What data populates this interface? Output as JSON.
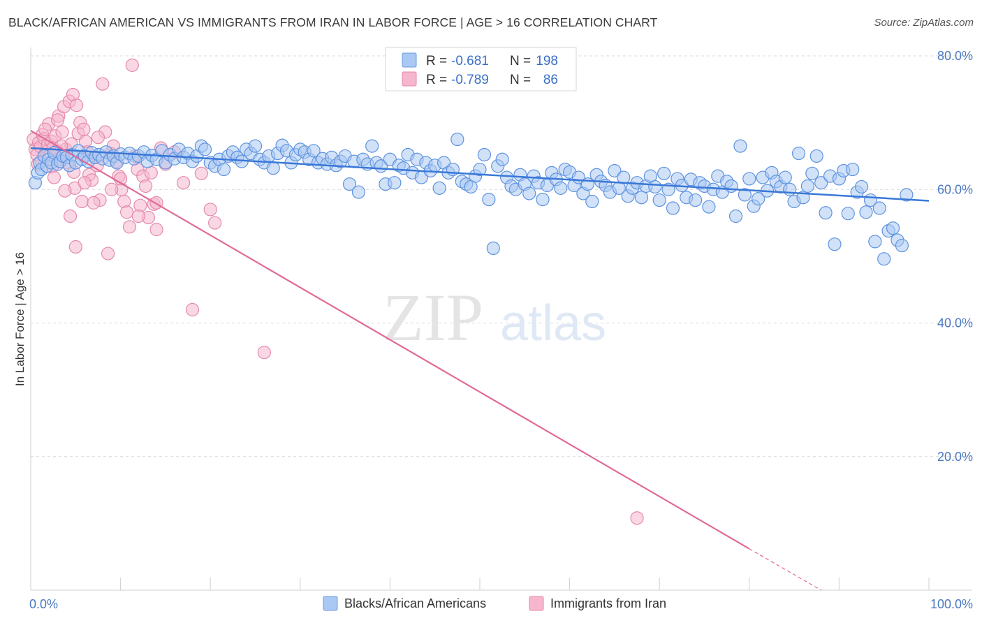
{
  "title": "BLACK/AFRICAN AMERICAN VS IMMIGRANTS FROM IRAN IN LABOR FORCE | AGE > 16 CORRELATION CHART",
  "source": "Source: ZipAtlas.com",
  "colors": {
    "blue": "#3a78d8",
    "blue_fill": "#a9c8f3",
    "pink": "#e06a98",
    "pink_fill": "#f6b6cd",
    "grid": "#d9d9d9",
    "tick_label": "#4a78c0"
  },
  "chart_data": {
    "type": "scatter",
    "xlabel": "",
    "ylabel": "In Labor Force | Age > 16",
    "xlim": [
      0,
      100
    ],
    "ylim": [
      0,
      80
    ],
    "x_tick_labels": [
      "0.0%",
      "100.0%"
    ],
    "y_ticks": [
      20,
      40,
      60,
      80
    ],
    "y_tick_labels": [
      "20.0%",
      "40.0%",
      "60.0%",
      "80.0%"
    ],
    "grid": true,
    "legend_position": "top-center",
    "watermark": {
      "zip": "ZIP",
      "atlas": "atlas"
    },
    "stats": [
      {
        "r_label": "R =",
        "r_value": "-0.681",
        "n_label": "N =",
        "n_value": "198"
      },
      {
        "r_label": "R =",
        "r_value": "-0.789",
        "n_label": "N =",
        "n_value": "86"
      }
    ],
    "series": [
      {
        "name": "Blacks/African Americans",
        "trend": {
          "x": [
            0,
            100
          ],
          "y": [
            66.2,
            58.3
          ]
        },
        "points": [
          [
            0.5,
            61
          ],
          [
            0.8,
            62.5
          ],
          [
            1,
            64
          ],
          [
            1.2,
            63
          ],
          [
            1.5,
            65
          ],
          [
            1.8,
            63.5
          ],
          [
            2,
            64.5
          ],
          [
            2.3,
            64
          ],
          [
            2.6,
            65.5
          ],
          [
            3,
            63.8
          ],
          [
            3.3,
            64.2
          ],
          [
            3.6,
            65
          ],
          [
            4,
            64.8
          ],
          [
            4.3,
            63.6
          ],
          [
            4.6,
            65.2
          ],
          [
            5,
            64
          ],
          [
            5.3,
            65.8
          ],
          [
            5.7,
            64.5
          ],
          [
            6,
            65
          ],
          [
            6.4,
            64.2
          ],
          [
            6.8,
            65.5
          ],
          [
            7.2,
            64.8
          ],
          [
            7.6,
            65.2
          ],
          [
            8,
            64.6
          ],
          [
            8.4,
            65.6
          ],
          [
            8.8,
            64.4
          ],
          [
            9.2,
            65
          ],
          [
            9.6,
            64
          ],
          [
            10,
            65.3
          ],
          [
            10.5,
            64.8
          ],
          [
            11,
            65.4
          ],
          [
            11.5,
            64.6
          ],
          [
            12,
            65
          ],
          [
            12.6,
            65.6
          ],
          [
            13,
            64.2
          ],
          [
            13.5,
            65.1
          ],
          [
            14,
            64.5
          ],
          [
            14.6,
            65.8
          ],
          [
            15,
            64
          ],
          [
            15.5,
            65.2
          ],
          [
            16,
            64.6
          ],
          [
            16.5,
            66
          ],
          [
            17,
            64.8
          ],
          [
            17.5,
            65.4
          ],
          [
            18,
            64.2
          ],
          [
            18.5,
            65
          ],
          [
            19,
            66.5
          ],
          [
            19.4,
            66
          ],
          [
            20,
            64
          ],
          [
            20.5,
            63.5
          ],
          [
            21,
            64.5
          ],
          [
            21.5,
            63
          ],
          [
            22,
            65
          ],
          [
            22.5,
            65.6
          ],
          [
            23,
            64.8
          ],
          [
            23.5,
            64.2
          ],
          [
            24,
            66
          ],
          [
            24.5,
            65.4
          ],
          [
            25,
            66.5
          ],
          [
            25.5,
            64.5
          ],
          [
            26,
            64
          ],
          [
            26.5,
            65
          ],
          [
            27,
            63.2
          ],
          [
            27.5,
            65.4
          ],
          [
            28,
            66.6
          ],
          [
            28.5,
            65.8
          ],
          [
            29,
            64
          ],
          [
            29.5,
            65.2
          ],
          [
            30,
            66
          ],
          [
            30.5,
            65.6
          ],
          [
            31,
            64.5
          ],
          [
            31.5,
            65.8
          ],
          [
            32,
            64
          ],
          [
            32.5,
            64.6
          ],
          [
            33,
            63.8
          ],
          [
            33.5,
            64.8
          ],
          [
            34,
            63.6
          ],
          [
            34.5,
            64.2
          ],
          [
            35,
            65
          ],
          [
            35.5,
            60.8
          ],
          [
            36,
            64.2
          ],
          [
            36.5,
            59.6
          ],
          [
            37,
            64.5
          ],
          [
            37.5,
            63.8
          ],
          [
            38,
            66.5
          ],
          [
            38.5,
            64
          ],
          [
            39,
            63.5
          ],
          [
            39.5,
            60.8
          ],
          [
            40,
            64.5
          ],
          [
            40.5,
            61
          ],
          [
            41,
            63.6
          ],
          [
            41.5,
            63.2
          ],
          [
            42,
            65.2
          ],
          [
            42.5,
            62.5
          ],
          [
            43,
            64.5
          ],
          [
            43.5,
            61.8
          ],
          [
            44,
            64
          ],
          [
            44.5,
            62.8
          ],
          [
            45,
            63.6
          ],
          [
            45.5,
            60.2
          ],
          [
            46,
            64
          ],
          [
            46.5,
            62.5
          ],
          [
            47,
            63
          ],
          [
            47.5,
            67.5
          ],
          [
            48,
            61.2
          ],
          [
            48.5,
            60.8
          ],
          [
            49,
            60.4
          ],
          [
            49.5,
            62
          ],
          [
            50,
            63
          ],
          [
            50.5,
            65.2
          ],
          [
            51,
            58.5
          ],
          [
            51.5,
            51.2
          ],
          [
            52,
            63.5
          ],
          [
            52.5,
            64.5
          ],
          [
            53,
            61.8
          ],
          [
            53.5,
            60.5
          ],
          [
            54,
            60
          ],
          [
            54.5,
            62.2
          ],
          [
            55,
            60.8
          ],
          [
            55.5,
            59.4
          ],
          [
            56,
            62
          ],
          [
            56.5,
            61
          ],
          [
            57,
            58.5
          ],
          [
            57.5,
            60.6
          ],
          [
            58,
            62.5
          ],
          [
            58.5,
            61.5
          ],
          [
            59,
            60.2
          ],
          [
            59.5,
            63
          ],
          [
            60,
            62.6
          ],
          [
            60.5,
            60.6
          ],
          [
            61,
            61.8
          ],
          [
            61.5,
            59.4
          ],
          [
            62,
            60.8
          ],
          [
            62.5,
            58.2
          ],
          [
            63,
            62.2
          ],
          [
            63.5,
            61.2
          ],
          [
            64,
            60.6
          ],
          [
            64.5,
            59.6
          ],
          [
            65,
            62.8
          ],
          [
            65.5,
            60.2
          ],
          [
            66,
            61.8
          ],
          [
            66.5,
            59
          ],
          [
            67,
            60.2
          ],
          [
            67.5,
            61
          ],
          [
            68,
            58.8
          ],
          [
            68.5,
            60.5
          ],
          [
            69,
            62
          ],
          [
            69.5,
            60.4
          ],
          [
            70,
            58.4
          ],
          [
            70.5,
            62.4
          ],
          [
            71,
            60
          ],
          [
            71.5,
            57.2
          ],
          [
            72,
            61.6
          ],
          [
            72.5,
            60.6
          ],
          [
            73,
            58.8
          ],
          [
            73.5,
            61.5
          ],
          [
            74,
            58.4
          ],
          [
            74.5,
            61
          ],
          [
            75,
            60.5
          ],
          [
            75.5,
            57.4
          ],
          [
            76,
            60
          ],
          [
            76.5,
            62
          ],
          [
            77,
            59.6
          ],
          [
            77.5,
            61.2
          ],
          [
            78,
            60.5
          ],
          [
            78.5,
            56
          ],
          [
            79,
            66.5
          ],
          [
            79.5,
            59.2
          ],
          [
            80,
            61.6
          ],
          [
            80.5,
            57.5
          ],
          [
            81,
            58.6
          ],
          [
            81.5,
            61.8
          ],
          [
            82,
            59.8
          ],
          [
            82.5,
            62.5
          ],
          [
            83,
            61.2
          ],
          [
            83.5,
            60.4
          ],
          [
            84,
            61.8
          ],
          [
            84.5,
            60
          ],
          [
            85,
            58.2
          ],
          [
            85.5,
            65.4
          ],
          [
            86,
            58.8
          ],
          [
            86.5,
            60.5
          ],
          [
            87,
            62.4
          ],
          [
            87.5,
            65
          ],
          [
            88,
            61
          ],
          [
            88.5,
            56.5
          ],
          [
            89,
            62
          ],
          [
            89.5,
            51.8
          ],
          [
            90,
            61.6
          ],
          [
            90.5,
            62.8
          ],
          [
            91,
            56.4
          ],
          [
            91.5,
            63
          ],
          [
            92,
            59.6
          ],
          [
            92.5,
            60.4
          ],
          [
            93,
            56.6
          ],
          [
            93.5,
            58.4
          ],
          [
            94,
            52.2
          ],
          [
            94.5,
            57.2
          ],
          [
            95,
            49.6
          ],
          [
            95.5,
            53.8
          ],
          [
            96,
            54.2
          ],
          [
            96.5,
            52.4
          ],
          [
            97,
            51.6
          ],
          [
            97.5,
            59.2
          ]
        ]
      },
      {
        "name": "Immigrants from Iran",
        "trend": {
          "x": [
            0,
            80
          ],
          "y": [
            68.8,
            6.2
          ],
          "dash_to": [
            88,
            0
          ]
        },
        "points": [
          [
            0.3,
            67.5
          ],
          [
            0.5,
            66
          ],
          [
            0.7,
            65.2
          ],
          [
            0.9,
            67
          ],
          [
            1.1,
            66.4
          ],
          [
            1.3,
            68.2
          ],
          [
            1.5,
            67.6
          ],
          [
            1.7,
            65.6
          ],
          [
            1.9,
            66.8
          ],
          [
            2.1,
            65
          ],
          [
            2.3,
            67.2
          ],
          [
            2.5,
            66.2
          ],
          [
            2.7,
            68
          ],
          [
            2.9,
            65.8
          ],
          [
            3.1,
            71
          ],
          [
            3.3,
            64.5
          ],
          [
            3.5,
            68.6
          ],
          [
            3.7,
            72.4
          ],
          [
            3.9,
            66
          ],
          [
            4.1,
            64
          ],
          [
            4.3,
            73.2
          ],
          [
            4.5,
            66.8
          ],
          [
            4.7,
            74.2
          ],
          [
            4.9,
            60.2
          ],
          [
            5.1,
            72.6
          ],
          [
            5.3,
            68.4
          ],
          [
            5.5,
            70
          ],
          [
            5.7,
            58.2
          ],
          [
            5.9,
            69
          ],
          [
            6.1,
            67.2
          ],
          [
            6.3,
            65.6
          ],
          [
            6.5,
            62.2
          ],
          [
            6.8,
            61.4
          ],
          [
            7.1,
            64.8
          ],
          [
            7.4,
            63.6
          ],
          [
            7.7,
            58.4
          ],
          [
            8,
            75.8
          ],
          [
            8.3,
            68.6
          ],
          [
            8.6,
            50.4
          ],
          [
            8.9,
            65.4
          ],
          [
            9.2,
            66.5
          ],
          [
            9.5,
            64.2
          ],
          [
            9.8,
            62
          ],
          [
            10.1,
            60
          ],
          [
            10.4,
            58.2
          ],
          [
            10.7,
            56.6
          ],
          [
            11,
            54.4
          ],
          [
            11.3,
            78.6
          ],
          [
            11.6,
            65
          ],
          [
            11.9,
            63
          ],
          [
            12.2,
            57.6
          ],
          [
            12.5,
            62
          ],
          [
            12.8,
            60.5
          ],
          [
            13.1,
            55.8
          ],
          [
            13.4,
            62.5
          ],
          [
            13.7,
            57.8
          ],
          [
            14,
            54
          ],
          [
            14.5,
            66.2
          ],
          [
            15,
            63.8
          ],
          [
            16,
            65.6
          ],
          [
            17,
            61
          ],
          [
            18,
            42
          ],
          [
            19,
            62.4
          ],
          [
            20,
            57
          ],
          [
            20.5,
            55
          ],
          [
            26,
            35.6
          ],
          [
            67.5,
            10.8
          ],
          [
            1.2,
            64.2
          ],
          [
            2,
            69.8
          ],
          [
            2.4,
            63.4
          ],
          [
            3,
            70.4
          ],
          [
            3.8,
            59.8
          ],
          [
            4.4,
            56
          ],
          [
            5,
            51.4
          ],
          [
            6,
            61
          ],
          [
            7,
            58
          ],
          [
            9,
            60
          ],
          [
            10,
            61.6
          ],
          [
            12,
            56
          ],
          [
            14,
            58
          ],
          [
            4.8,
            62.6
          ],
          [
            3.4,
            66.5
          ],
          [
            1.6,
            69
          ],
          [
            0.8,
            63.8
          ],
          [
            2.6,
            61.8
          ],
          [
            7.5,
            67.8
          ]
        ]
      }
    ]
  }
}
